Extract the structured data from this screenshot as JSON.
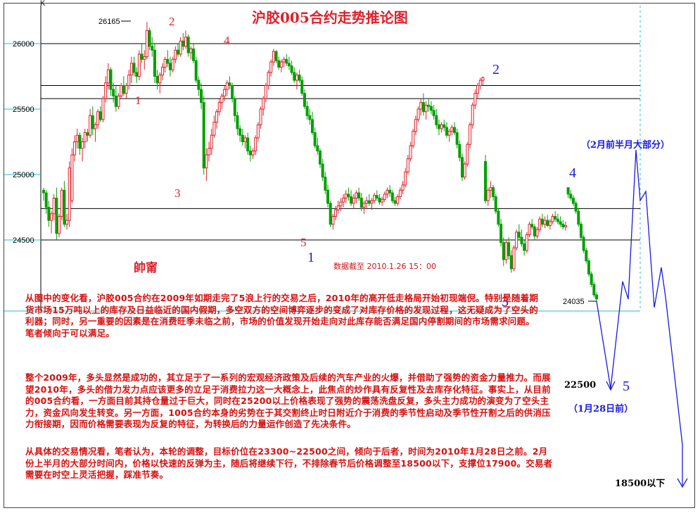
{
  "chart_data": {
    "type": "candlestick",
    "title": "沪胶005合约走势推论图",
    "y_ticks": [
      26000,
      25500,
      25000,
      24500
    ],
    "ylim": [
      24000,
      26300
    ],
    "axis_marker": "K",
    "high_label": "26165",
    "low_label": "24035",
    "horizontal_levels": [
      26000,
      25680,
      25580,
      24740,
      24500
    ],
    "wave_labels_red": [
      "2",
      "4",
      "1",
      "3",
      "5"
    ],
    "wave_labels_blue": [
      "2",
      "1",
      "4",
      "3",
      "5"
    ],
    "watermark": "帥甯",
    "data_timestamp": "数据截至 2010.1.26 15：00",
    "projection": {
      "target_label": "22500",
      "target_note": "（1月28日前）",
      "feb_note": "（2月前半月大部分）",
      "final_label": "18500以下"
    },
    "candles": [
      [
        24880,
        24900,
        24800,
        24860
      ],
      [
        24860,
        24880,
        24700,
        24750
      ],
      [
        24750,
        24800,
        24600,
        24650
      ],
      [
        24650,
        24720,
        24550,
        24700
      ],
      [
        24700,
        24850,
        24650,
        24820
      ],
      [
        24820,
        24900,
        24500,
        24550
      ],
      [
        24550,
        24700,
        24520,
        24680
      ],
      [
        24680,
        24900,
        24650,
        24880
      ],
      [
        24880,
        24950,
        24600,
        24620
      ],
      [
        24620,
        24700,
        24580,
        24650
      ],
      [
        24650,
        25100,
        24600,
        25050
      ],
      [
        24800,
        25200,
        24780,
        25150
      ],
      [
        25150,
        25300,
        25100,
        25250
      ],
      [
        25250,
        25350,
        25200,
        25300
      ],
      [
        25300,
        25320,
        25150,
        25200
      ],
      [
        25200,
        25280,
        25100,
        25250
      ],
      [
        25250,
        25350,
        25200,
        25320
      ],
      [
        25320,
        25350,
        25250,
        25300
      ],
      [
        25300,
        25500,
        25280,
        25450
      ],
      [
        25450,
        25520,
        25300,
        25350
      ],
      [
        25350,
        25400,
        25250,
        25380
      ],
      [
        25380,
        25500,
        25350,
        25480
      ],
      [
        25480,
        25520,
        25400,
        25420
      ],
      [
        25420,
        25600,
        25400,
        25580
      ],
      [
        25580,
        25750,
        25550,
        25700
      ],
      [
        25700,
        25850,
        25650,
        25800
      ],
      [
        25800,
        25820,
        25600,
        25650
      ],
      [
        25650,
        25700,
        25550,
        25600
      ],
      [
        25600,
        25680,
        25480,
        25520
      ],
      [
        25520,
        25620,
        25500,
        25600
      ],
      [
        25600,
        25700,
        25580,
        25680
      ],
      [
        25680,
        25750,
        25600,
        25620
      ],
      [
        25620,
        25700,
        25580,
        25680
      ],
      [
        25680,
        25800,
        25650,
        25760
      ],
      [
        25760,
        25900,
        25700,
        25850
      ],
      [
        25850,
        25900,
        25750,
        25780
      ],
      [
        25780,
        25820,
        25700,
        25750
      ],
      [
        25750,
        25950,
        25720,
        25920
      ],
      [
        25920,
        26000,
        25850,
        25880
      ],
      [
        25880,
        25950,
        25800,
        25900
      ],
      [
        25900,
        26165,
        25880,
        26100
      ],
      [
        26100,
        26120,
        25950,
        25980
      ],
      [
        25980,
        26050,
        25900,
        25950
      ],
      [
        25950,
        26000,
        25700,
        25750
      ],
      [
        25750,
        25800,
        25650,
        25700
      ],
      [
        25700,
        25780,
        25620,
        25760
      ],
      [
        25760,
        25850,
        25720,
        25820
      ],
      [
        25820,
        25900,
        25780,
        25880
      ],
      [
        25880,
        25950,
        25820,
        25850
      ],
      [
        25850,
        25900,
        25750,
        25800
      ],
      [
        25800,
        25900,
        25780,
        25880
      ],
      [
        25880,
        25980,
        25850,
        25950
      ],
      [
        25950,
        26000,
        25900,
        25920
      ],
      [
        25920,
        26050,
        25900,
        26020
      ],
      [
        26020,
        26080,
        25950,
        25980
      ],
      [
        25980,
        26100,
        25960,
        26050
      ],
      [
        26050,
        26070,
        25900,
        25930
      ],
      [
        25930,
        25980,
        25880,
        25960
      ],
      [
        25960,
        26000,
        25850,
        25870
      ],
      [
        25870,
        25900,
        25700,
        25720
      ],
      [
        25720,
        25750,
        25600,
        25650
      ],
      [
        25650,
        25700,
        25500,
        25550
      ],
      [
        25550,
        25600,
        25000,
        25050
      ],
      [
        25050,
        25200,
        24950,
        25150
      ],
      [
        25150,
        25250,
        25100,
        25200
      ],
      [
        25200,
        25350,
        25150,
        25300
      ],
      [
        25300,
        25450,
        25280,
        25400
      ],
      [
        25400,
        25500,
        25350,
        25480
      ],
      [
        25480,
        25580,
        25450,
        25550
      ],
      [
        25550,
        25620,
        25500,
        25600
      ],
      [
        25600,
        25680,
        25560,
        25650
      ],
      [
        25650,
        25720,
        25600,
        25700
      ],
      [
        25700,
        25750,
        25650,
        25680
      ],
      [
        25680,
        25700,
        25550,
        25580
      ],
      [
        25580,
        25600,
        25400,
        25450
      ],
      [
        25450,
        25480,
        25300,
        25350
      ],
      [
        25350,
        25380,
        25250,
        25300
      ],
      [
        25300,
        25350,
        25220,
        25250
      ],
      [
        25250,
        25300,
        25200,
        25280
      ],
      [
        25280,
        25320,
        25150,
        25180
      ],
      [
        25180,
        25220,
        25100,
        25150
      ],
      [
        25150,
        25200,
        25120,
        25180
      ],
      [
        25180,
        25300,
        25150,
        25280
      ],
      [
        25280,
        25400,
        25250,
        25380
      ],
      [
        25380,
        25520,
        25350,
        25500
      ],
      [
        25500,
        25600,
        25450,
        25580
      ],
      [
        25580,
        25700,
        25550,
        25680
      ],
      [
        25680,
        25800,
        25650,
        25780
      ],
      [
        25780,
        25880,
        25750,
        25860
      ],
      [
        25860,
        25960,
        25830,
        25940
      ],
      [
        25940,
        25950,
        25850,
        25870
      ],
      [
        25870,
        25900,
        25800,
        25820
      ],
      [
        25820,
        25880,
        25780,
        25860
      ],
      [
        25860,
        25900,
        25820,
        25880
      ],
      [
        25880,
        25920,
        25830,
        25850
      ],
      [
        25850,
        25900,
        25800,
        25830
      ],
      [
        25830,
        25870,
        25760,
        25780
      ],
      [
        25780,
        25820,
        25700,
        25720
      ],
      [
        25720,
        25780,
        25650,
        25760
      ],
      [
        25760,
        25800,
        25700,
        25720
      ],
      [
        25720,
        25750,
        25600,
        25620
      ],
      [
        25620,
        25650,
        25500,
        25520
      ],
      [
        25520,
        25560,
        25420,
        25450
      ],
      [
        25450,
        25500,
        25380,
        25420
      ],
      [
        25420,
        25480,
        25300,
        25320
      ],
      [
        25320,
        25360,
        25200,
        25220
      ],
      [
        25220,
        25280,
        25150,
        25180
      ],
      [
        25180,
        25200,
        25050,
        25080
      ],
      [
        25080,
        25120,
        24950,
        24980
      ],
      [
        24980,
        25020,
        24850,
        24880
      ],
      [
        24880,
        24920,
        24750,
        24780
      ],
      [
        24780,
        24800,
        24600,
        24620
      ],
      [
        24620,
        24700,
        24580,
        24680
      ],
      [
        24680,
        24760,
        24650,
        24730
      ],
      [
        24730,
        24800,
        24700,
        24760
      ],
      [
        24760,
        24820,
        24720,
        24790
      ],
      [
        24790,
        24850,
        24750,
        24820
      ],
      [
        24820,
        24880,
        24780,
        24850
      ],
      [
        24850,
        24900,
        24800,
        24830
      ],
      [
        24830,
        24880,
        24760,
        24780
      ],
      [
        24780,
        24850,
        24740,
        24820
      ],
      [
        24820,
        24880,
        24780,
        24860
      ],
      [
        24860,
        24900,
        24800,
        24820
      ],
      [
        24820,
        24860,
        24720,
        24750
      ],
      [
        24750,
        24800,
        24700,
        24780
      ],
      [
        24780,
        24830,
        24740,
        24800
      ],
      [
        24800,
        24850,
        24760,
        24780
      ],
      [
        24780,
        24820,
        24730,
        24800
      ],
      [
        24800,
        24860,
        24780,
        24840
      ],
      [
        24840,
        24880,
        24800,
        24820
      ],
      [
        24820,
        24850,
        24770,
        24790
      ],
      [
        24790,
        24830,
        24760,
        24810
      ],
      [
        24810,
        24870,
        24790,
        24850
      ],
      [
        24850,
        24900,
        24820,
        24880
      ],
      [
        24880,
        24920,
        24830,
        24860
      ],
      [
        24860,
        24880,
        24780,
        24800
      ],
      [
        24800,
        24830,
        24760,
        24780
      ],
      [
        24780,
        24850,
        24760,
        24830
      ],
      [
        24830,
        24900,
        24810,
        24880
      ],
      [
        24880,
        24950,
        24850,
        24920
      ],
      [
        24920,
        25050,
        24900,
        25020
      ],
      [
        25020,
        25150,
        25000,
        25120
      ],
      [
        25120,
        25250,
        25100,
        25220
      ],
      [
        25220,
        25350,
        25200,
        25330
      ],
      [
        25330,
        25450,
        25300,
        25420
      ],
      [
        25420,
        25520,
        25400,
        25500
      ],
      [
        25500,
        25580,
        25450,
        25550
      ],
      [
        25550,
        25620,
        25450,
        25480
      ],
      [
        25480,
        25560,
        25420,
        25530
      ],
      [
        25530,
        25580,
        25480,
        25520
      ],
      [
        25520,
        25560,
        25460,
        25490
      ],
      [
        25490,
        25530,
        25420,
        25450
      ],
      [
        25450,
        25500,
        25350,
        25380
      ],
      [
        25380,
        25420,
        25300,
        25350
      ],
      [
        25350,
        25400,
        25320,
        25380
      ],
      [
        25380,
        25420,
        25330,
        25360
      ],
      [
        25360,
        25400,
        25280,
        25300
      ],
      [
        25300,
        25350,
        25250,
        25330
      ],
      [
        25330,
        25380,
        25300,
        25360
      ],
      [
        25360,
        25400,
        25300,
        25320
      ],
      [
        25320,
        25350,
        25200,
        25230
      ],
      [
        25230,
        25260,
        25100,
        25130
      ],
      [
        25130,
        25160,
        24950,
        24980
      ],
      [
        24980,
        25100,
        24960,
        25080
      ],
      [
        25080,
        25250,
        25060,
        25230
      ],
      [
        25230,
        25400,
        25200,
        25380
      ],
      [
        25380,
        25550,
        25350,
        25530
      ],
      [
        25530,
        25650,
        25500,
        25620
      ],
      [
        25620,
        25700,
        25580,
        25680
      ],
      [
        25680,
        25740,
        25650,
        25720
      ],
      [
        25720,
        25750,
        25680,
        25740
      ],
      [
        25100,
        25150,
        24780,
        24800
      ],
      [
        24800,
        24900,
        24760,
        24880
      ],
      [
        24880,
        24950,
        24820,
        24900
      ],
      [
        24900,
        24920,
        24800,
        24830
      ],
      [
        24830,
        24850,
        24700,
        24720
      ],
      [
        24720,
        24740,
        24600,
        24620
      ],
      [
        24620,
        24660,
        24450,
        24480
      ],
      [
        24480,
        24520,
        24300,
        24350
      ],
      [
        24350,
        24500,
        24320,
        24480
      ],
      [
        24480,
        24520,
        24350,
        24380
      ],
      [
        24380,
        24420,
        24250,
        24280
      ],
      [
        24280,
        24460,
        24260,
        24440
      ],
      [
        24440,
        24580,
        24420,
        24560
      ],
      [
        24560,
        24620,
        24500,
        24520
      ],
      [
        24520,
        24580,
        24450,
        24470
      ],
      [
        24470,
        24500,
        24380,
        24420
      ],
      [
        24420,
        24560,
        24400,
        24540
      ],
      [
        24540,
        24640,
        24520,
        24620
      ],
      [
        24620,
        24660,
        24580,
        24600
      ],
      [
        24600,
        24620,
        24500,
        24530
      ],
      [
        24530,
        24600,
        24510,
        24580
      ],
      [
        24580,
        24680,
        24560,
        24660
      ],
      [
        24660,
        24700,
        24600,
        24620
      ],
      [
        24620,
        24680,
        24590,
        24650
      ],
      [
        24650,
        24690,
        24600,
        24610
      ],
      [
        24610,
        24660,
        24580,
        24640
      ],
      [
        24640,
        24700,
        24620,
        24680
      ],
      [
        24680,
        24720,
        24640,
        24660
      ],
      [
        24660,
        24700,
        24620,
        24640
      ],
      [
        24640,
        24680,
        24600,
        24620
      ],
      [
        24620,
        24650,
        24580,
        24600
      ],
      [
        24600,
        24640,
        24570,
        24610
      ],
      [
        24900,
        24900,
        24820,
        24850
      ],
      [
        24850,
        24880,
        24800,
        24820
      ],
      [
        24820,
        24840,
        24760,
        24780
      ],
      [
        24780,
        24800,
        24700,
        24720
      ],
      [
        24720,
        24740,
        24600,
        24620
      ],
      [
        24620,
        24640,
        24500,
        24520
      ],
      [
        24520,
        24540,
        24400,
        24420
      ],
      [
        24420,
        24440,
        24320,
        24340
      ],
      [
        24340,
        24360,
        24220,
        24240
      ],
      [
        24240,
        24260,
        24140,
        24160
      ],
      [
        24160,
        24180,
        24060,
        24080
      ],
      [
        24080,
        24100,
        24035,
        24050
      ]
    ]
  },
  "paragraphs": [
    "从图中的变化看，沪胶005合约在2009年如期走完了5浪上行的交易之后，2010年的高开低走格局开始初现端倪。特别是随着期货市场15万吨以上的库存及日益临近的国内假期，多空双方的空间博弈逐步的变成了对库存价格的发现过程，这无疑成为了空头的利器；同时，另一重要的因素是在消费旺季未临之前，市场的价值发现开始走向对此库存能否满足国内停割期间的市场需求问题。笔者倾向于可以满足。",
    "整个2009年，多头显然是成功的，其立足于了一系列的宏观经济政策及后续的汽车产业的火爆，并借助了强势的资金力量推力。而展望2010年，多头的借力发力点应该更多的立足于消费拉力这一大概念上，此焦点的炒作具有反复性及去库存化特征。事实上，从目前的005合约看，一方面目前其持仓量过于巨大，同时在25200以上价格表现了强势的震荡洗盘反复，多头主力成功的演变为了空头主力，资金风向发生转变。另一方面，1005合约本身的劣势在于其交割终止时日附近介于消费的季节性启动及季节性开割之后的供消压力衔接期，因而价格需要表现为反复的特征，为转换后的力量运作创造了先决条件。",
    "从具体的交易情况看，笔者认为，本轮的调整，目标价位在23300~22500之间，倾向于后者，时间为2010年1月28日之前。2月份上半月的大部分时间内，价格以快速的反弹为主，随后将继续下行，不排除春节后价格调整至18500以下，支撑位17900。交易者需要在时空上灵活把握，踩准节奏。"
  ],
  "colors": {
    "up": "#e0202a",
    "down": "#00a000",
    "grid": "#000000",
    "projection": "#1a1ae0",
    "text_red": "#d81010",
    "axis_cyan": "#20c0c0"
  }
}
